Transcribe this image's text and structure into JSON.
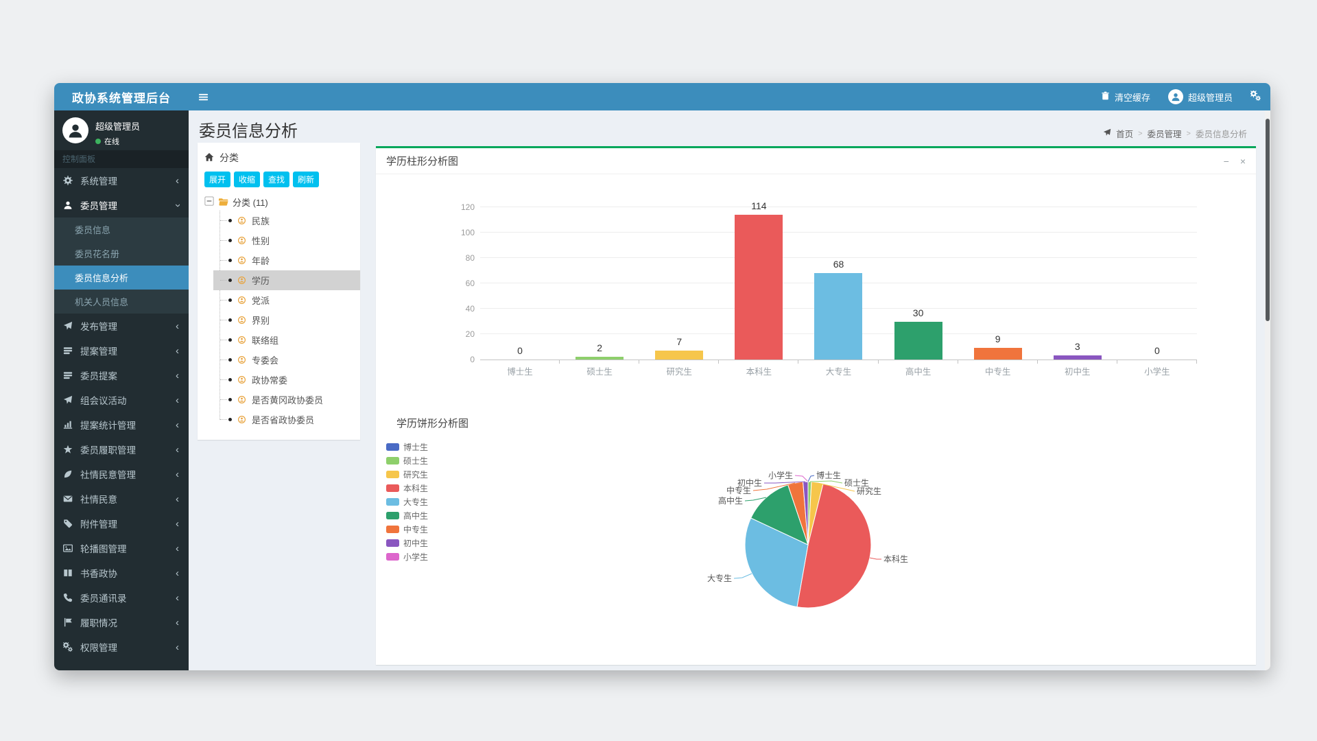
{
  "window": {
    "title": "政协系统管理后台"
  },
  "header": {
    "clear_cache": "清空缓存",
    "username": "超级管理员"
  },
  "sidebar": {
    "user": {
      "name": "超级管理员",
      "status": "在线"
    },
    "section_label": "控制面板",
    "items": [
      {
        "label": "系统管理",
        "icon": "gear",
        "type": "parent"
      },
      {
        "label": "委员管理",
        "icon": "user",
        "type": "parent-open"
      },
      {
        "label": "委员信息",
        "type": "child"
      },
      {
        "label": "委员花名册",
        "type": "child"
      },
      {
        "label": "委员信息分析",
        "type": "child-active"
      },
      {
        "label": "机关人员信息",
        "type": "child"
      },
      {
        "label": "发布管理",
        "icon": "send",
        "type": "parent"
      },
      {
        "label": "提案管理",
        "icon": "list",
        "type": "parent"
      },
      {
        "label": "委员提案",
        "icon": "list",
        "type": "parent"
      },
      {
        "label": "组会议活动",
        "icon": "send",
        "type": "parent"
      },
      {
        "label": "提案统计管理",
        "icon": "chart",
        "type": "parent"
      },
      {
        "label": "委员履职管理",
        "icon": "star",
        "type": "parent"
      },
      {
        "label": "社情民意管理",
        "icon": "leaf",
        "type": "parent"
      },
      {
        "label": "社情民意",
        "icon": "envelope",
        "type": "parent"
      },
      {
        "label": "附件管理",
        "icon": "tag",
        "type": "parent"
      },
      {
        "label": "轮播图管理",
        "icon": "image",
        "type": "parent"
      },
      {
        "label": "书香政协",
        "icon": "book",
        "type": "parent"
      },
      {
        "label": "委员通讯录",
        "icon": "phone",
        "type": "parent"
      },
      {
        "label": "履职情况",
        "icon": "flag",
        "type": "parent"
      },
      {
        "label": "权限管理",
        "icon": "cogs",
        "type": "parent"
      }
    ]
  },
  "page": {
    "title": "委员信息分析",
    "breadcrumb": [
      "首页",
      "委员管理",
      "委员信息分析"
    ]
  },
  "category_panel": {
    "title": "分类",
    "buttons": [
      "展开",
      "收缩",
      "查找",
      "刷新"
    ],
    "root_label": "分类 (11)",
    "items": [
      "民族",
      "性别",
      "年龄",
      "学历",
      "党派",
      "界别",
      "联络组",
      "专委会",
      "政协常委",
      "是否黄冈政协委员",
      "是否省政协委员"
    ],
    "selected": "学历"
  },
  "panel_controls": {
    "minimize": "−",
    "close": "×"
  },
  "chart_data": [
    {
      "type": "bar",
      "title": "学历柱形分析图",
      "categories": [
        "博士生",
        "硕士生",
        "研究生",
        "本科生",
        "大专生",
        "高中生",
        "中专生",
        "初中生",
        "小学生"
      ],
      "values": [
        0,
        2,
        7,
        114,
        68,
        30,
        9,
        3,
        0
      ],
      "colors": [
        "#4a6bc5",
        "#8ecf6b",
        "#f6c64b",
        "#ea5a5a",
        "#6cbde2",
        "#2da06c",
        "#f0743c",
        "#8a56c0",
        "#dd66cc"
      ],
      "ylim": [
        0,
        120
      ],
      "ytick_step": 20,
      "grid": true,
      "xlabel": "",
      "ylabel": ""
    },
    {
      "type": "pie",
      "title": "学历饼形分析图",
      "categories": [
        "博士生",
        "硕士生",
        "研究生",
        "本科生",
        "大专生",
        "高中生",
        "中专生",
        "初中生",
        "小学生"
      ],
      "values": [
        0,
        2,
        7,
        114,
        68,
        30,
        9,
        3,
        0
      ],
      "colors": [
        "#4a6bc5",
        "#8ecf6b",
        "#f6c64b",
        "#ea5a5a",
        "#6cbde2",
        "#2da06c",
        "#f0743c",
        "#8a56c0",
        "#dd66cc"
      ],
      "legend_position": "left"
    }
  ],
  "accent_colors": {
    "header_blue": "#3c8dbc",
    "sidebar_dark": "#222d32",
    "box_success_green": "#00a65a",
    "button_aqua": "#00c0ef",
    "online_green": "#3db35f"
  }
}
